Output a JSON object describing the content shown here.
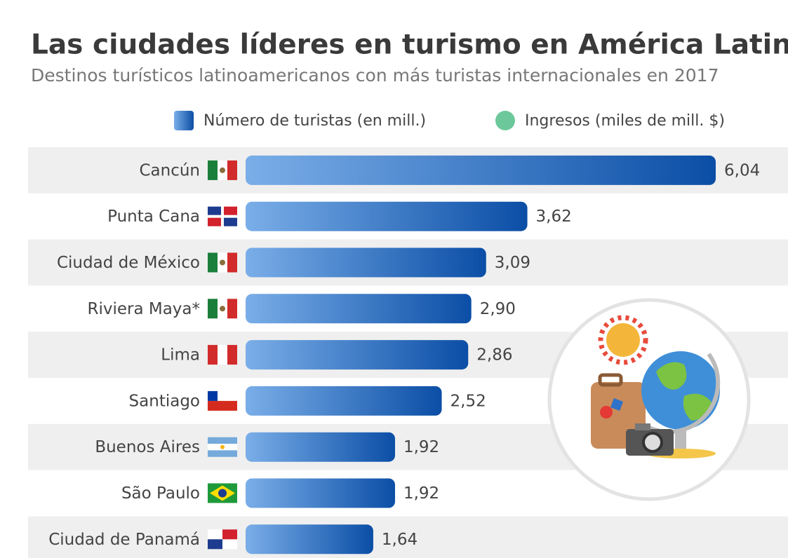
{
  "chart_data": {
    "type": "bar",
    "orientation": "horizontal",
    "title": "Las ciudades líderes en turismo en América Latina",
    "subtitle": "Destinos turísticos latinoamericanos con más turistas internacionales en 2017",
    "categories": [
      "Cancún",
      "Punta Cana",
      "Ciudad de México",
      "Riviera Maya*",
      "Lima",
      "Santiago",
      "Buenos Aires",
      "São Paulo",
      "Ciudad de Panamá"
    ],
    "series": [
      {
        "name": "Número de turistas (en mill.)",
        "color": "#1a5fb4",
        "values": [
          6.04,
          3.62,
          3.09,
          2.9,
          2.86,
          2.52,
          1.92,
          1.92,
          1.64
        ],
        "value_labels": [
          "6,04",
          "3,62",
          "3,09",
          "2,90",
          "2,86",
          "2,52",
          "1,92",
          "1,92",
          "1,64"
        ]
      },
      {
        "name": "Ingresos (miles de mill. $)",
        "color": "#6cc89a"
      }
    ]
  }
}
